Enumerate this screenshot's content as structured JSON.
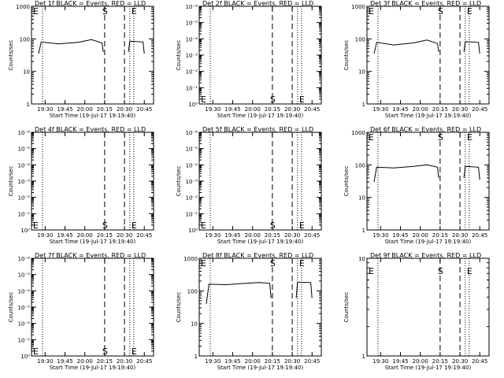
{
  "chart_data": [
    {
      "type": "line",
      "title": "Det 1f BLACK = Events, RED = LLD",
      "xlabel": "Start Time (19-Jul-17 19:19:40)",
      "ylabel": "Counts/sec",
      "scale": "log",
      "yticks": [
        "1",
        "10",
        "100",
        "1000"
      ],
      "xticks": [
        "19:30",
        "19:45",
        "20:00",
        "20:15",
        "20:30",
        "20:45"
      ],
      "markers": [
        {
          "label": "E",
          "time": "19:19:40",
          "style": "dotted"
        },
        {
          "label": "",
          "time": "19:28",
          "style": "dotted"
        },
        {
          "label": "S",
          "time": "20:15",
          "style": "dashed"
        },
        {
          "label": "",
          "time": "20:30",
          "style": "dashed"
        },
        {
          "label": "",
          "time": "20:34",
          "style": "dotted"
        },
        {
          "label": "E",
          "time": "20:37",
          "style": "dotted"
        }
      ],
      "series": [
        {
          "name": "",
          "color": "#000000",
          "segments": [
            [
              [
                "19:25",
                35
              ],
              [
                "19:27",
                80
              ],
              [
                "19:40",
                70
              ],
              [
                "19:55",
                78
              ],
              [
                "20:05",
                95
              ],
              [
                "20:13",
                75
              ],
              [
                "20:14",
                40
              ]
            ],
            [
              [
                "20:33",
                40
              ],
              [
                "20:34",
                85
              ],
              [
                "20:44",
                80
              ],
              [
                "20:45",
                35
              ]
            ]
          ]
        }
      ]
    },
    {
      "type": "line",
      "title": "Det 2f BLACK = Events, RED = LLD",
      "xlabel": "Start Time (19-Jul-17 19:19:40)",
      "ylabel": "Counts/sec",
      "scale": "log",
      "yticks": [
        "10⁰",
        "10⁻¹",
        "10⁻²",
        "10⁻³",
        "10⁻⁴",
        "10⁻⁵",
        "10⁻⁶"
      ],
      "xticks": [
        "19:30",
        "19:45",
        "20:00",
        "20:15",
        "20:30",
        "20:45"
      ],
      "markers": [
        {
          "label": "E",
          "time": "19:19:40",
          "style": "dotted"
        },
        {
          "label": "",
          "time": "19:28",
          "style": "dotted"
        },
        {
          "label": "S",
          "time": "20:15",
          "style": "dashed"
        },
        {
          "label": "",
          "time": "20:30",
          "style": "dashed"
        },
        {
          "label": "",
          "time": "20:34",
          "style": "dotted"
        },
        {
          "label": "E",
          "time": "20:37",
          "style": "dotted"
        }
      ],
      "series": []
    },
    {
      "type": "line",
      "title": "Det 3f BLACK = Events, RED = LLD",
      "xlabel": "Start Time (19-Jul-17 19:19:40)",
      "ylabel": "Counts/sec",
      "scale": "log",
      "yticks": [
        "1",
        "10",
        "100",
        "1000"
      ],
      "xticks": [
        "19:30",
        "19:45",
        "20:00",
        "20:15",
        "20:30",
        "20:45"
      ],
      "markers": [
        {
          "label": "E",
          "time": "19:19:40",
          "style": "dotted"
        },
        {
          "label": "",
          "time": "19:28",
          "style": "dotted"
        },
        {
          "label": "S",
          "time": "20:15",
          "style": "dashed"
        },
        {
          "label": "",
          "time": "20:30",
          "style": "dashed"
        },
        {
          "label": "",
          "time": "20:34",
          "style": "dotted"
        },
        {
          "label": "E",
          "time": "20:37",
          "style": "dotted"
        }
      ],
      "series": [
        {
          "name": "",
          "color": "#000000",
          "segments": [
            [
              [
                "19:25",
                35
              ],
              [
                "19:27",
                78
              ],
              [
                "19:40",
                65
              ],
              [
                "19:55",
                75
              ],
              [
                "20:05",
                92
              ],
              [
                "20:13",
                72
              ],
              [
                "20:14",
                40
              ]
            ],
            [
              [
                "20:33",
                40
              ],
              [
                "20:34",
                82
              ],
              [
                "20:44",
                78
              ],
              [
                "20:45",
                35
              ]
            ]
          ]
        }
      ]
    },
    {
      "type": "line",
      "title": "Det 4f BLACK = Events, RED = LLD",
      "xlabel": "Start Time (19-Jul-17 19:19:40)",
      "ylabel": "Counts/sec",
      "scale": "log",
      "yticks": [
        "10⁰",
        "10⁻¹",
        "10⁻²",
        "10⁻³",
        "10⁻⁴",
        "10⁻⁵",
        "10⁻⁶"
      ],
      "xticks": [
        "19:30",
        "19:45",
        "20:00",
        "20:15",
        "20:30",
        "20:45"
      ],
      "markers": [
        {
          "label": "E",
          "time": "19:19:40",
          "style": "dotted"
        },
        {
          "label": "",
          "time": "19:28",
          "style": "dotted"
        },
        {
          "label": "S",
          "time": "20:15",
          "style": "dashed"
        },
        {
          "label": "",
          "time": "20:30",
          "style": "dashed"
        },
        {
          "label": "",
          "time": "20:34",
          "style": "dotted"
        },
        {
          "label": "E",
          "time": "20:37",
          "style": "dotted"
        }
      ],
      "series": []
    },
    {
      "type": "line",
      "title": "Det 5f BLACK = Events, RED = LLD",
      "xlabel": "Start Time (19-Jul-17 19:19:40)",
      "ylabel": "Counts/sec",
      "scale": "log",
      "yticks": [
        "10⁰",
        "10⁻¹",
        "10⁻²",
        "10⁻³",
        "10⁻⁴",
        "10⁻⁵",
        "10⁻⁶"
      ],
      "xticks": [
        "19:30",
        "19:45",
        "20:00",
        "20:15",
        "20:30",
        "20:45"
      ],
      "markers": [
        {
          "label": "E",
          "time": "19:19:40",
          "style": "dotted"
        },
        {
          "label": "",
          "time": "19:28",
          "style": "dotted"
        },
        {
          "label": "S",
          "time": "20:15",
          "style": "dashed"
        },
        {
          "label": "",
          "time": "20:30",
          "style": "dashed"
        },
        {
          "label": "",
          "time": "20:34",
          "style": "dotted"
        },
        {
          "label": "E",
          "time": "20:37",
          "style": "dotted"
        }
      ],
      "series": []
    },
    {
      "type": "line",
      "title": "Det 6f BLACK = Events, RED = LLD",
      "xlabel": "Start Time (19-Jul-17 19:19:40)",
      "ylabel": "Counts/sec",
      "scale": "log",
      "yticks": [
        "1",
        "10",
        "100",
        "1000"
      ],
      "xticks": [
        "19:30",
        "19:45",
        "20:00",
        "20:15",
        "20:30",
        "20:45"
      ],
      "markers": [
        {
          "label": "E",
          "time": "19:19:40",
          "style": "dotted"
        },
        {
          "label": "",
          "time": "19:28",
          "style": "dotted"
        },
        {
          "label": "S",
          "time": "20:15",
          "style": "dashed"
        },
        {
          "label": "",
          "time": "20:30",
          "style": "dashed"
        },
        {
          "label": "",
          "time": "20:34",
          "style": "dotted"
        },
        {
          "label": "E",
          "time": "20:37",
          "style": "dotted"
        }
      ],
      "series": [
        {
          "name": "",
          "color": "#000000",
          "segments": [
            [
              [
                "19:25",
                30
              ],
              [
                "19:27",
                85
              ],
              [
                "19:40",
                80
              ],
              [
                "19:55",
                90
              ],
              [
                "20:05",
                100
              ],
              [
                "20:13",
                85
              ],
              [
                "20:14",
                40
              ]
            ],
            [
              [
                "20:33",
                40
              ],
              [
                "20:34",
                90
              ],
              [
                "20:44",
                85
              ],
              [
                "20:45",
                35
              ]
            ]
          ]
        }
      ]
    },
    {
      "type": "line",
      "title": "Det 7f BLACK = Events, RED = LLD",
      "xlabel": "Start Time (19-Jul-17 19:19:40)",
      "ylabel": "Counts/sec",
      "scale": "log",
      "yticks": [
        "10⁰",
        "10⁻¹",
        "10⁻²",
        "10⁻³",
        "10⁻⁴",
        "10⁻⁵",
        "10⁻⁶"
      ],
      "xticks": [
        "19:30",
        "19:45",
        "20:00",
        "20:15",
        "20:30",
        "20:45"
      ],
      "markers": [
        {
          "label": "E",
          "time": "19:19:40",
          "style": "dotted"
        },
        {
          "label": "",
          "time": "19:28",
          "style": "dotted"
        },
        {
          "label": "S",
          "time": "20:15",
          "style": "dashed"
        },
        {
          "label": "",
          "time": "20:30",
          "style": "dashed"
        },
        {
          "label": "",
          "time": "20:34",
          "style": "dotted"
        },
        {
          "label": "E",
          "time": "20:37",
          "style": "dotted"
        }
      ],
      "series": []
    },
    {
      "type": "line",
      "title": "Det 8f BLACK = Events, RED = LLD",
      "xlabel": "Start Time (19-Jul-17 19:19:40)",
      "ylabel": "Counts/sec",
      "scale": "log",
      "yticks": [
        "1",
        "10",
        "100",
        "1000"
      ],
      "xticks": [
        "19:30",
        "19:45",
        "20:00",
        "20:15",
        "20:30",
        "20:45"
      ],
      "markers": [
        {
          "label": "E",
          "time": "19:19:40",
          "style": "dotted"
        },
        {
          "label": "",
          "time": "19:28",
          "style": "dotted"
        },
        {
          "label": "S",
          "time": "20:15",
          "style": "dashed"
        },
        {
          "label": "",
          "time": "20:30",
          "style": "dashed"
        },
        {
          "label": "",
          "time": "20:34",
          "style": "dotted"
        },
        {
          "label": "E",
          "time": "20:37",
          "style": "dotted"
        }
      ],
      "series": [
        {
          "name": "",
          "color": "#000000",
          "segments": [
            [
              [
                "19:25",
                40
              ],
              [
                "19:27",
                160
              ],
              [
                "19:40",
                155
              ],
              [
                "19:55",
                170
              ],
              [
                "20:05",
                180
              ],
              [
                "20:13",
                170
              ],
              [
                "20:14",
                60
              ]
            ],
            [
              [
                "20:33",
                60
              ],
              [
                "20:34",
                185
              ],
              [
                "20:44",
                180
              ],
              [
                "20:45",
                60
              ]
            ]
          ]
        }
      ]
    },
    {
      "type": "line",
      "title": "Det 9f BLACK = Events, RED = LLD",
      "xlabel": "Start Time (19-Jul-17 19:19:40)",
      "ylabel": "Counts/sec",
      "scale": "log",
      "yticks": [
        "1",
        "10"
      ],
      "xticks": [
        "19:30",
        "19:45",
        "20:00",
        "20:15",
        "20:30",
        "20:45"
      ],
      "markers": [
        {
          "label": "E",
          "time": "19:19:40",
          "style": "dotted"
        },
        {
          "label": "",
          "time": "19:28",
          "style": "dotted"
        },
        {
          "label": "S",
          "time": "20:15",
          "style": "dashed"
        },
        {
          "label": "",
          "time": "20:30",
          "style": "dashed"
        },
        {
          "label": "",
          "time": "20:34",
          "style": "dotted"
        },
        {
          "label": "E",
          "time": "20:37",
          "style": "dotted"
        }
      ],
      "series": []
    }
  ]
}
